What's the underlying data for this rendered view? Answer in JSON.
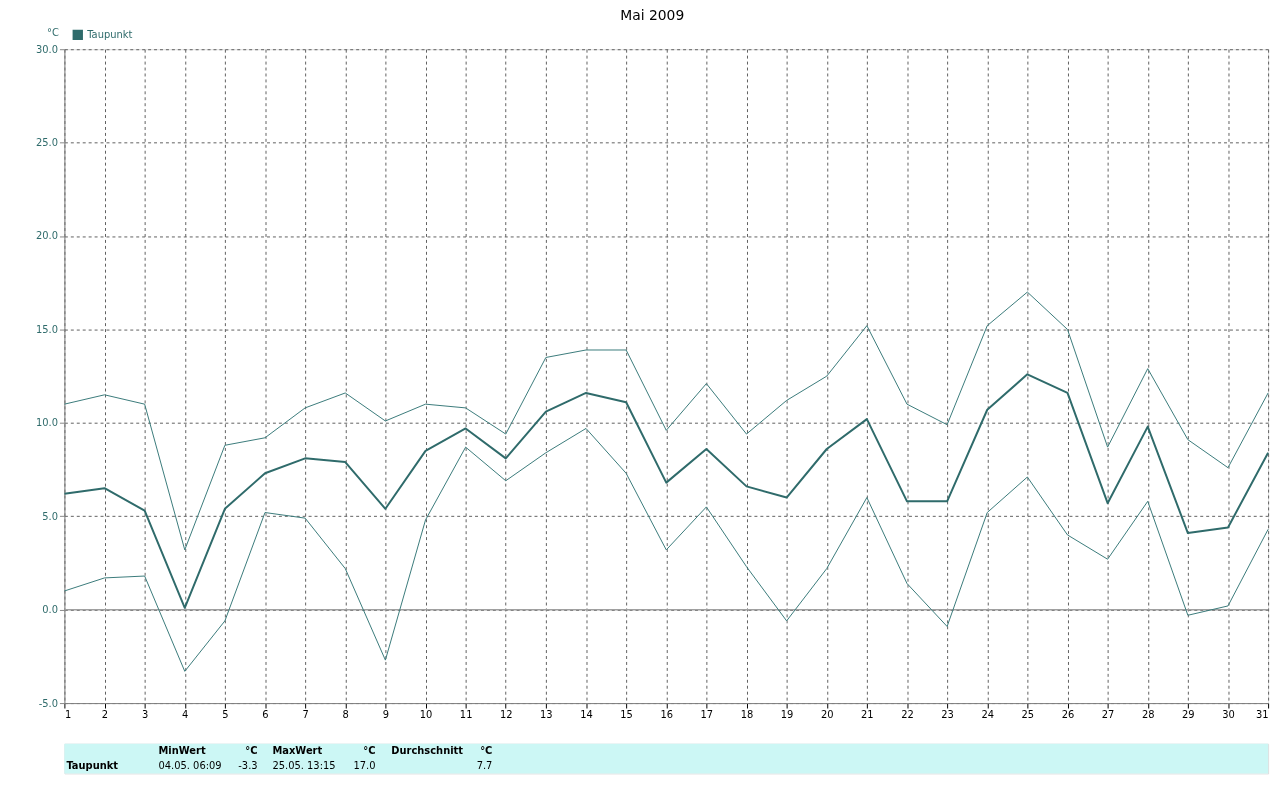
{
  "chart_data": {
    "type": "line",
    "title": "Mai 2009",
    "ylabel": "°C",
    "x": [
      1,
      2,
      3,
      4,
      5,
      6,
      7,
      8,
      9,
      10,
      11,
      12,
      13,
      14,
      15,
      16,
      17,
      18,
      19,
      20,
      21,
      22,
      23,
      24,
      25,
      26,
      27,
      28,
      29,
      30,
      31
    ],
    "series": [
      {
        "color": "#3a7a7a",
        "values": [
          11.0,
          11.5,
          11.0,
          3.2,
          8.8,
          9.2,
          10.8,
          11.6,
          10.1,
          11.0,
          10.8,
          9.4,
          13.5,
          13.9,
          13.9,
          9.6,
          12.1,
          9.4,
          11.2,
          12.5,
          15.2,
          11.0,
          9.9,
          15.2,
          17.0,
          15.0,
          8.7,
          12.9,
          9.1,
          7.6,
          11.6
        ]
      },
      {
        "name": "Taupunkt",
        "color": "#2f6b6b",
        "values": [
          6.2,
          6.5,
          5.3,
          0.1,
          5.4,
          7.3,
          8.1,
          7.9,
          5.4,
          8.5,
          9.7,
          8.1,
          10.6,
          11.6,
          11.1,
          6.8,
          8.6,
          6.6,
          6.0,
          8.6,
          10.2,
          5.8,
          5.8,
          10.7,
          12.6,
          11.6,
          5.7,
          9.8,
          4.1,
          4.4,
          8.4
        ]
      },
      {
        "color": "#3a7a7a",
        "values": [
          1.0,
          1.7,
          1.8,
          -3.3,
          -0.6,
          5.2,
          4.9,
          2.2,
          -2.7,
          4.8,
          8.7,
          6.9,
          8.4,
          9.7,
          7.3,
          3.2,
          5.5,
          2.3,
          -0.6,
          2.2,
          6.0,
          1.4,
          -0.9,
          5.2,
          7.1,
          4.0,
          2.7,
          5.8,
          -0.3,
          0.2,
          4.3
        ]
      }
    ],
    "xlim": [
      1,
      31
    ],
    "xticks": [
      1,
      2,
      3,
      4,
      5,
      6,
      7,
      8,
      9,
      10,
      11,
      12,
      13,
      14,
      15,
      16,
      17,
      18,
      19,
      20,
      21,
      22,
      23,
      24,
      25,
      26,
      27,
      28,
      29,
      30,
      31
    ],
    "ylim": [
      -5,
      30
    ],
    "yticks": [
      {
        "value": -5,
        "label": "-5.0"
      },
      {
        "value": 0,
        "label": "0.0"
      },
      {
        "value": 5,
        "label": "5.0"
      },
      {
        "value": 10,
        "label": "10.0"
      },
      {
        "value": 15,
        "label": "15.0"
      },
      {
        "value": 20,
        "label": "20.0"
      },
      {
        "value": 25,
        "label": "25.0"
      },
      {
        "value": 30,
        "label": "30.0"
      }
    ],
    "ref_lines": [
      {
        "axis": "y",
        "value": 0,
        "color": "#a0a0a0"
      }
    ],
    "grid": true,
    "legend": "top left",
    "line_style": "solid",
    "annotations": [
      "Taupunkt",
      "MinWert",
      "°C",
      "04.05.  06:09",
      "-3.3",
      "MaxWert",
      "°C",
      "25.05.  13:15",
      "17.0",
      "Durchschnitt",
      "°C",
      "7.7"
    ]
  }
}
